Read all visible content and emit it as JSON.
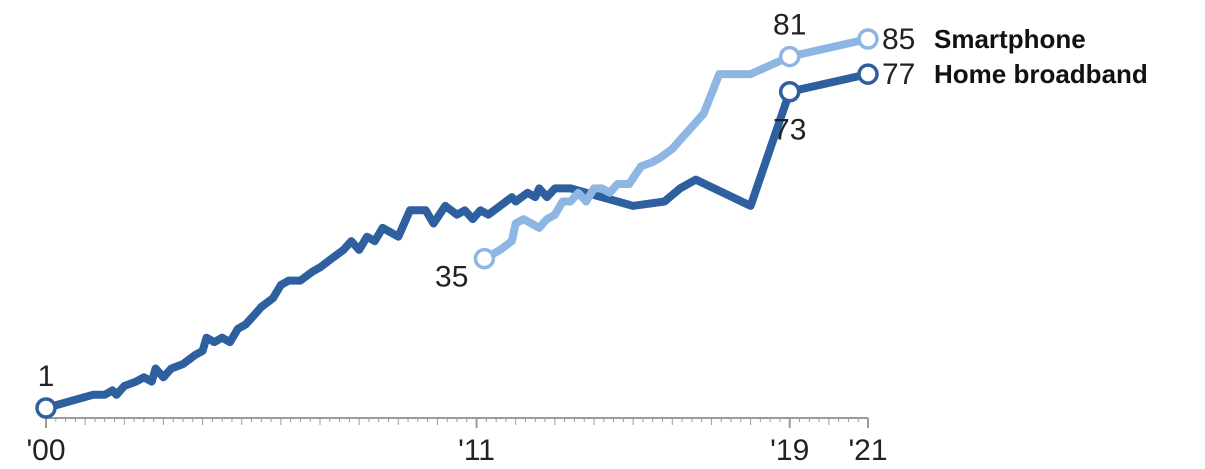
{
  "chart_data": {
    "type": "line",
    "title": "",
    "xlabel": "",
    "ylabel": "",
    "xlim": [
      2000,
      2021
    ],
    "ylim": [
      0,
      100
    ],
    "grid": false,
    "x_ticks": [
      {
        "value": 2000,
        "label": "'00"
      },
      {
        "value": 2011,
        "label": "'11"
      },
      {
        "value": 2019,
        "label": "'19"
      },
      {
        "value": 2021,
        "label": "'21"
      }
    ],
    "series": [
      {
        "name": "Home broadband",
        "color": "#2e5f9e",
        "end_label": "77",
        "points": [
          [
            2000.0,
            1
          ],
          [
            2000.4,
            2
          ],
          [
            2000.8,
            3
          ],
          [
            2001.2,
            4
          ],
          [
            2001.5,
            4
          ],
          [
            2001.7,
            5
          ],
          [
            2001.8,
            4
          ],
          [
            2002.0,
            6
          ],
          [
            2002.3,
            7
          ],
          [
            2002.5,
            8
          ],
          [
            2002.7,
            7
          ],
          [
            2002.8,
            10
          ],
          [
            2003.0,
            8
          ],
          [
            2003.2,
            10
          ],
          [
            2003.5,
            11
          ],
          [
            2003.8,
            13
          ],
          [
            2004.0,
            14
          ],
          [
            2004.1,
            17
          ],
          [
            2004.3,
            16
          ],
          [
            2004.5,
            17
          ],
          [
            2004.7,
            16
          ],
          [
            2004.9,
            19
          ],
          [
            2005.1,
            20
          ],
          [
            2005.3,
            22
          ],
          [
            2005.5,
            24
          ],
          [
            2005.8,
            26
          ],
          [
            2006.0,
            29
          ],
          [
            2006.2,
            30
          ],
          [
            2006.5,
            30
          ],
          [
            2006.8,
            32
          ],
          [
            2007.0,
            33
          ],
          [
            2007.3,
            35
          ],
          [
            2007.6,
            37
          ],
          [
            2007.8,
            39
          ],
          [
            2008.0,
            37
          ],
          [
            2008.2,
            40
          ],
          [
            2008.4,
            39
          ],
          [
            2008.6,
            42
          ],
          [
            2008.8,
            41
          ],
          [
            2009.0,
            40
          ],
          [
            2009.3,
            46
          ],
          [
            2009.7,
            46
          ],
          [
            2009.9,
            43
          ],
          [
            2010.2,
            47
          ],
          [
            2010.5,
            45
          ],
          [
            2010.7,
            46
          ],
          [
            2010.9,
            44
          ],
          [
            2011.1,
            46
          ],
          [
            2011.3,
            45
          ],
          [
            2011.6,
            47
          ],
          [
            2011.9,
            49
          ],
          [
            2012.0,
            48
          ],
          [
            2012.3,
            50
          ],
          [
            2012.5,
            49
          ],
          [
            2012.6,
            51
          ],
          [
            2012.8,
            49
          ],
          [
            2013.0,
            51
          ],
          [
            2013.4,
            51
          ],
          [
            2015.0,
            47
          ],
          [
            2015.8,
            48
          ],
          [
            2016.2,
            51
          ],
          [
            2016.6,
            53
          ],
          [
            2018.0,
            47
          ],
          [
            2019.0,
            73
          ],
          [
            2021.0,
            77
          ]
        ]
      },
      {
        "name": "Smartphone",
        "color": "#8db6e3",
        "start_label": "35",
        "mid_label": "81",
        "end_label": "85",
        "points": [
          [
            2011.2,
            35
          ],
          [
            2011.6,
            37
          ],
          [
            2011.9,
            39
          ],
          [
            2012.0,
            43
          ],
          [
            2012.2,
            44
          ],
          [
            2012.4,
            43
          ],
          [
            2012.6,
            42
          ],
          [
            2012.8,
            44
          ],
          [
            2013.0,
            45
          ],
          [
            2013.2,
            48
          ],
          [
            2013.4,
            48
          ],
          [
            2013.6,
            50
          ],
          [
            2013.8,
            48
          ],
          [
            2014.0,
            51
          ],
          [
            2014.2,
            51
          ],
          [
            2014.4,
            50
          ],
          [
            2014.6,
            52
          ],
          [
            2014.9,
            52
          ],
          [
            2015.2,
            56
          ],
          [
            2015.5,
            57
          ],
          [
            2015.7,
            58
          ],
          [
            2016.0,
            60
          ],
          [
            2016.2,
            62
          ],
          [
            2016.4,
            64
          ],
          [
            2016.8,
            68
          ],
          [
            2017.2,
            77
          ],
          [
            2018.0,
            77
          ],
          [
            2019.0,
            81
          ],
          [
            2021.0,
            85
          ]
        ]
      }
    ],
    "annotations": [
      {
        "series": 0,
        "x": 2000.0,
        "text": "1",
        "position": "above"
      },
      {
        "series": 0,
        "x": 2019.0,
        "text": "73",
        "position": "below"
      },
      {
        "series": 1,
        "x": 2011.2,
        "text": "35",
        "position": "left-below"
      },
      {
        "series": 1,
        "x": 2019.0,
        "text": "81",
        "position": "above"
      }
    ]
  }
}
